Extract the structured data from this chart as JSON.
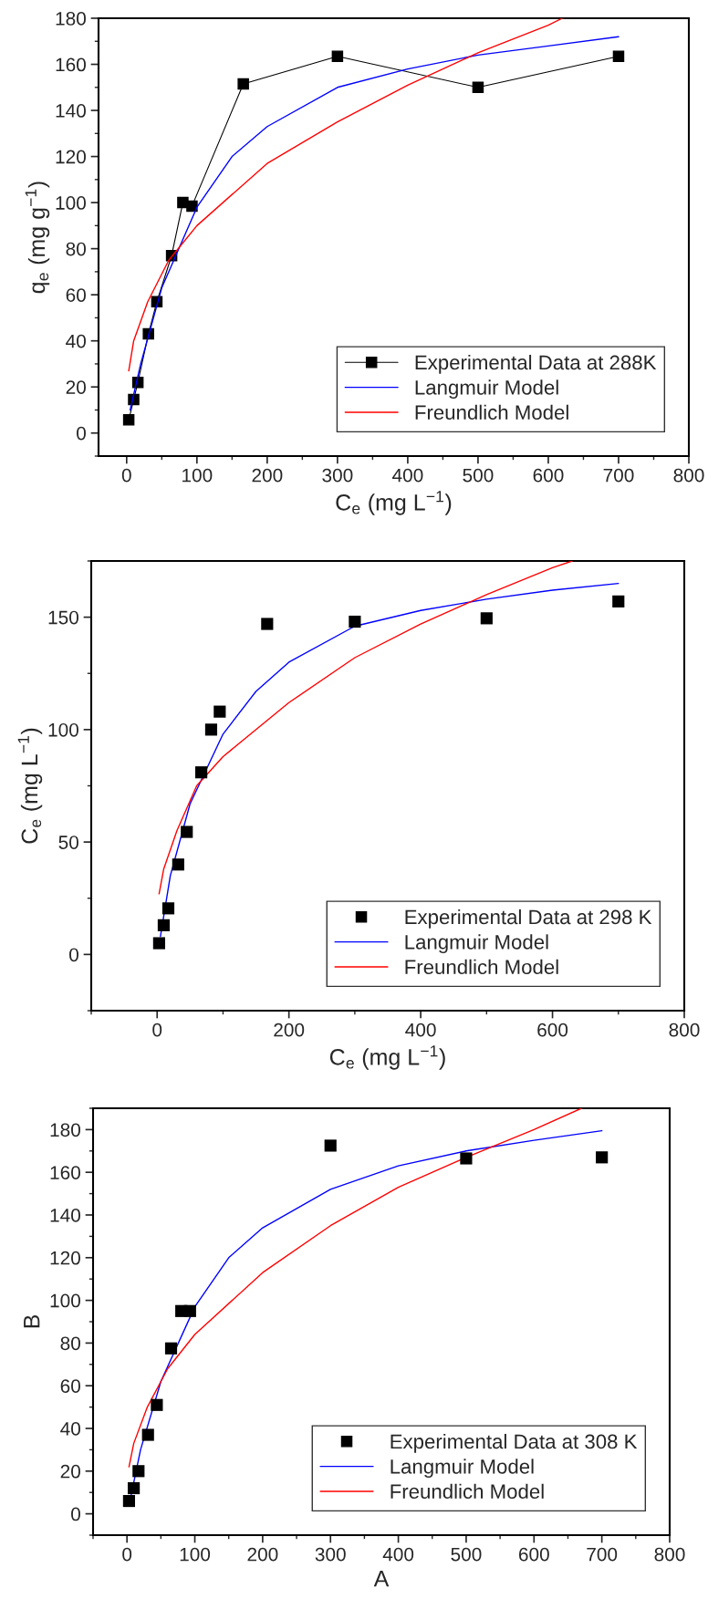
{
  "chart_data": [
    {
      "type": "line",
      "xlabel": "C$_{e}$ (mg L$^{−1}$)",
      "ylabel": "q$_{e}$ (mg g$^{−1}$)",
      "xlim": [
        -40,
        800
      ],
      "ylim": [
        -10,
        180
      ],
      "xticks": [
        0,
        100,
        200,
        300,
        400,
        500,
        600,
        700,
        800
      ],
      "yticks": [
        0,
        20,
        40,
        60,
        80,
        100,
        120,
        140,
        160,
        180
      ],
      "legend": "bottom right",
      "grid": false,
      "series": [
        {
          "name": "Experimental Data at 288K",
          "marker": "square",
          "color": "#000000",
          "x": [
            3,
            10,
            16,
            31,
            43,
            64,
            80,
            93,
            166,
            300,
            500,
            700
          ],
          "values": [
            5.7,
            14.5,
            22,
            43,
            57,
            77,
            100,
            98.5,
            151.5,
            163.5,
            150,
            163.5
          ]
        },
        {
          "name": "Langmuir Model",
          "color": "#0000ff",
          "x": [
            5,
            20,
            50,
            100,
            150,
            200,
            300,
            400,
            500,
            600,
            700
          ],
          "values": [
            10,
            30,
            63,
            98,
            120,
            133,
            150,
            158,
            164,
            168,
            172
          ]
        },
        {
          "name": "Freundlich Model",
          "color": "#ff0000",
          "x": [
            3,
            10,
            30,
            60,
            100,
            200,
            300,
            400,
            500,
            600,
            620
          ],
          "values": [
            27,
            40,
            57,
            75,
            90,
            117,
            135,
            151,
            165,
            177,
            180
          ]
        }
      ]
    },
    {
      "type": "scatter",
      "xlabel": "C$_{e}$ (mg L$^{−1}$)",
      "ylabel": "C$_{e}$ (mg L$^{−1}$)",
      "xlim": [
        -100,
        800
      ],
      "ylim": [
        -25,
        175
      ],
      "xticks": [
        0,
        200,
        400,
        600,
        800
      ],
      "yticks": [
        0,
        50,
        100,
        150
      ],
      "legend": "bottom right",
      "grid": false,
      "series": [
        {
          "name": "Experimental Data at 298 K",
          "marker": "square",
          "color": "#000000",
          "x": [
            3,
            10,
            17,
            32,
            45,
            67,
            82,
            95,
            167,
            300,
            500,
            700
          ],
          "values": [
            5,
            13,
            20.5,
            40,
            54.5,
            81,
            100,
            108,
            147,
            148,
            149.5,
            157
          ]
        },
        {
          "name": "Langmuir Model",
          "type": "line",
          "color": "#0000ff",
          "x": [
            5,
            20,
            50,
            100,
            150,
            200,
            300,
            400,
            500,
            600,
            700
          ],
          "values": [
            8,
            35,
            67,
            98,
            117,
            130,
            146,
            153,
            158,
            162,
            165
          ]
        },
        {
          "name": "Freundlich Model",
          "type": "line",
          "color": "#ff0000",
          "x": [
            3,
            10,
            30,
            60,
            100,
            200,
            300,
            400,
            500,
            600,
            630
          ],
          "values": [
            27,
            38,
            55,
            75,
            88,
            112,
            132,
            147,
            160,
            172,
            175
          ]
        }
      ]
    },
    {
      "type": "scatter",
      "xlabel": "A",
      "ylabel": "B",
      "xlim": [
        -50,
        800
      ],
      "ylim": [
        -10,
        190
      ],
      "xticks": [
        0,
        100,
        200,
        300,
        400,
        500,
        600,
        700,
        800
      ],
      "yticks": [
        0,
        20,
        40,
        60,
        80,
        100,
        120,
        140,
        160,
        180
      ],
      "legend": "bottom right",
      "grid": false,
      "series": [
        {
          "name": "Experimental Data at 308 K",
          "marker": "square",
          "color": "#000000",
          "x": [
            3,
            10,
            17,
            31,
            44,
            65,
            80,
            93,
            300,
            500,
            700
          ],
          "values": [
            6,
            12,
            20,
            37,
            51,
            77.5,
            95,
            95,
            172.5,
            166.5,
            167
          ]
        },
        {
          "name": "Langmuir Model",
          "type": "line",
          "color": "#0000ff",
          "x": [
            5,
            20,
            50,
            100,
            150,
            200,
            300,
            400,
            500,
            600,
            700
          ],
          "values": [
            7,
            30,
            62,
            97,
            120,
            134,
            152,
            163,
            170,
            175,
            179.5
          ]
        },
        {
          "name": "Freundlich Model",
          "type": "line",
          "color": "#ff0000",
          "x": [
            3,
            10,
            30,
            60,
            100,
            200,
            300,
            400,
            500,
            600,
            670
          ],
          "values": [
            22,
            33,
            50,
            68,
            84,
            113,
            135,
            153,
            167,
            180,
            190
          ]
        }
      ]
    }
  ]
}
